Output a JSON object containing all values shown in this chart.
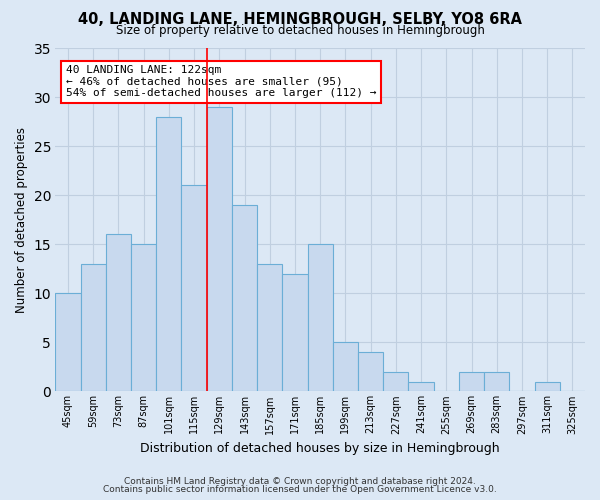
{
  "title": "40, LANDING LANE, HEMINGBROUGH, SELBY, YO8 6RA",
  "subtitle": "Size of property relative to detached houses in Hemingbrough",
  "xlabel": "Distribution of detached houses by size in Hemingbrough",
  "ylabel": "Number of detached properties",
  "categories": [
    "45sqm",
    "59sqm",
    "73sqm",
    "87sqm",
    "101sqm",
    "115sqm",
    "129sqm",
    "143sqm",
    "157sqm",
    "171sqm",
    "185sqm",
    "199sqm",
    "213sqm",
    "227sqm",
    "241sqm",
    "255sqm",
    "269sqm",
    "283sqm",
    "297sqm",
    "311sqm",
    "325sqm"
  ],
  "values": [
    10,
    13,
    16,
    15,
    28,
    21,
    29,
    19,
    13,
    12,
    15,
    5,
    4,
    2,
    1,
    0,
    2,
    2,
    0,
    1,
    0
  ],
  "bar_color": "#c8d9ee",
  "bar_edgecolor": "#6baed6",
  "ylim": [
    0,
    35
  ],
  "yticks": [
    0,
    5,
    10,
    15,
    20,
    25,
    30,
    35
  ],
  "redline_x": 6,
  "annotation_text": "40 LANDING LANE: 122sqm\n← 46% of detached houses are smaller (95)\n54% of semi-detached houses are larger (112) →",
  "footnote1": "Contains HM Land Registry data © Crown copyright and database right 2024.",
  "footnote2": "Contains public sector information licensed under the Open Government Licence v3.0.",
  "background_color": "#dce8f5",
  "plot_background": "#dce8f5",
  "grid_color": "#c0cfe0"
}
